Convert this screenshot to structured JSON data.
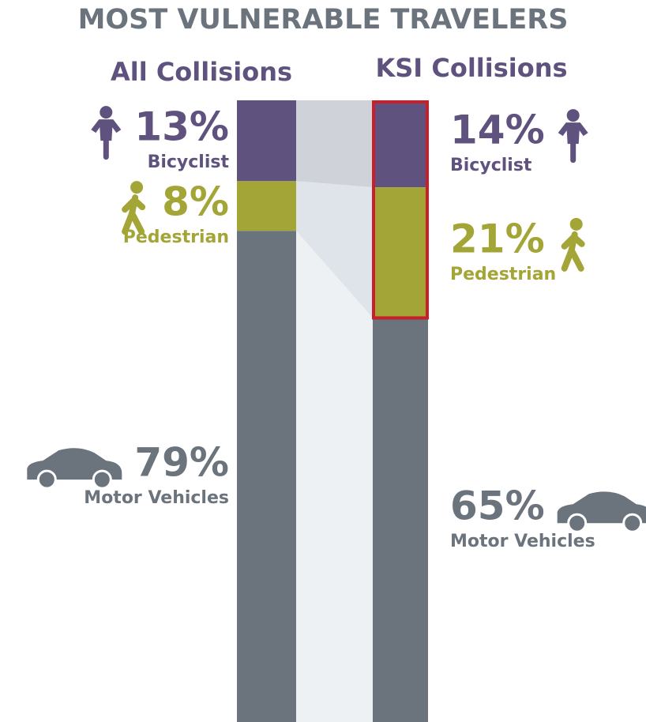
{
  "chart_data": {
    "type": "stacked-bar",
    "title": "MOST VULNERABLE TRAVELERS",
    "categories": [
      "All Collisions",
      "KSI Collisions"
    ],
    "series": [
      {
        "name": "Bicyclist",
        "color": "#5f527e",
        "values": [
          13,
          14
        ],
        "value_labels": [
          "13%",
          "14%"
        ]
      },
      {
        "name": "Pedestrian",
        "color": "#a3a536",
        "values": [
          8,
          21
        ],
        "value_labels": [
          "8%",
          "21%"
        ]
      },
      {
        "name": "Motor Vehicles",
        "color": "#6b737c",
        "values": [
          79,
          65
        ],
        "value_labels": [
          "79%",
          "65%"
        ]
      }
    ]
  }
}
